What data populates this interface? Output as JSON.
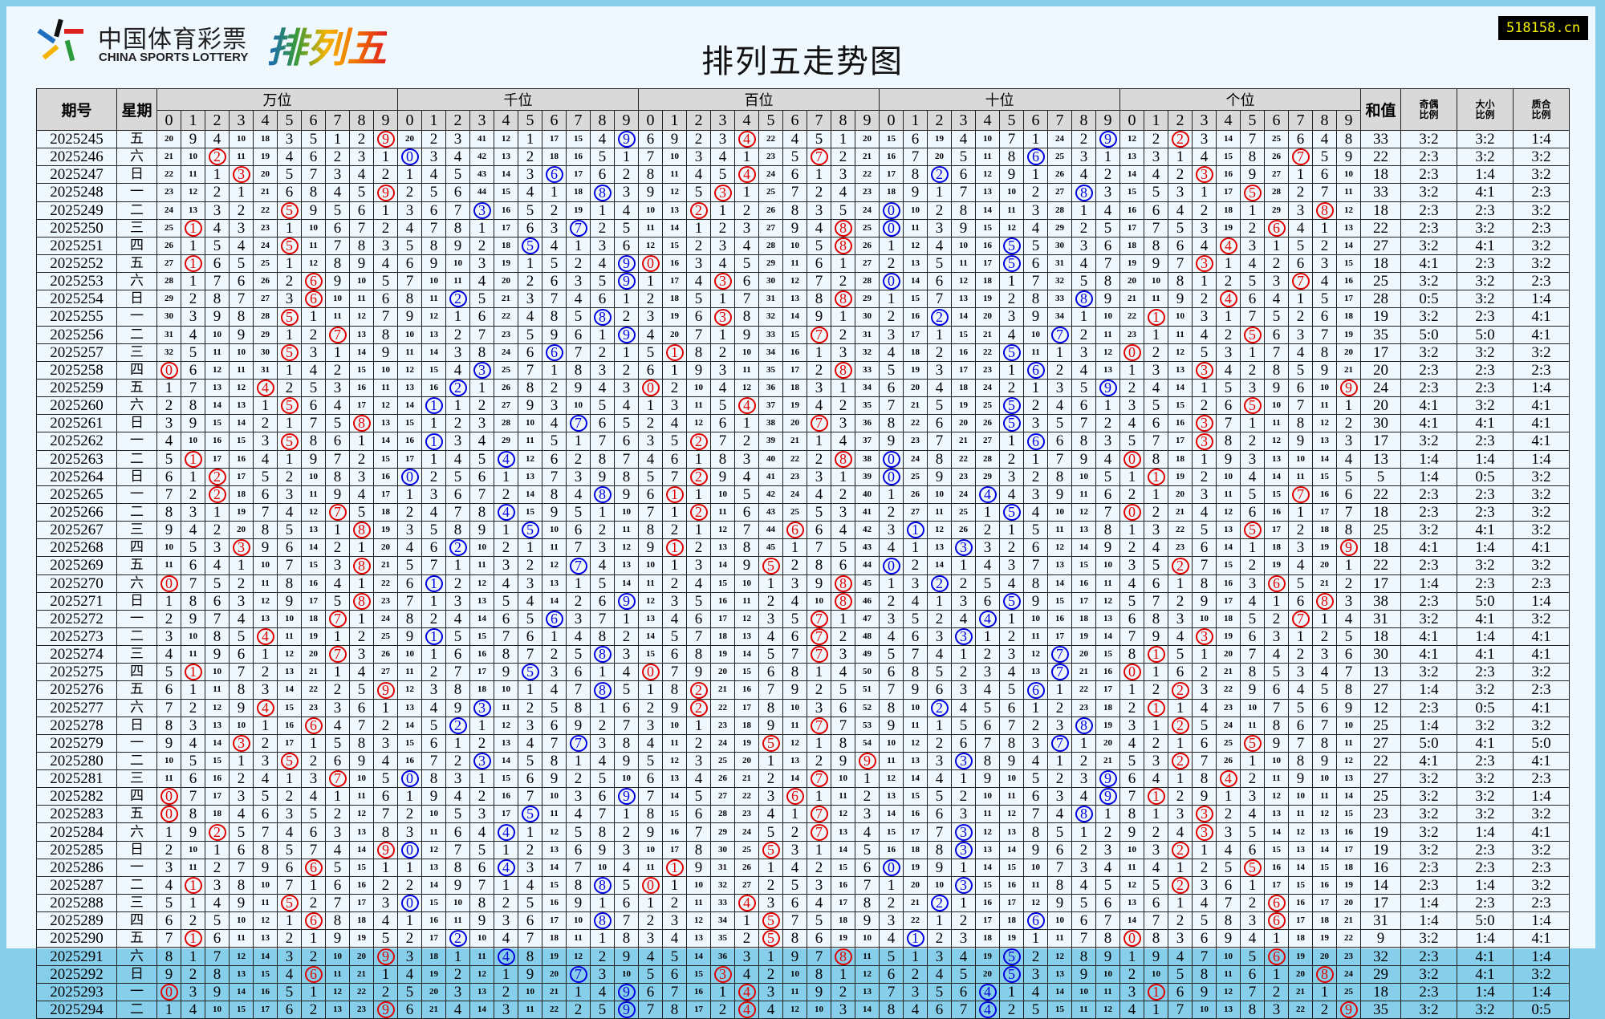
{
  "header": {
    "logo_cn": "中国体育彩票",
    "logo_en": "CHINA SPORTS LOTTERY",
    "logo_game": "排列五",
    "title": "排列五走势图",
    "watermark": "518158.cn"
  },
  "columns": {
    "period": "期号",
    "weekday": "星期",
    "positions": [
      "万位",
      "千位",
      "百位",
      "十位",
      "个位"
    ],
    "digit_labels": [
      "0",
      "1",
      "2",
      "3",
      "4",
      "5",
      "6",
      "7",
      "8",
      "9"
    ],
    "sum": "和值",
    "odd_even": [
      "奇偶",
      "比例"
    ],
    "big_small": [
      "大小",
      "比例"
    ],
    "prime_composite": [
      "质合",
      "比例"
    ]
  },
  "colors": {
    "position_circle": [
      "#e00000",
      "#0000e0",
      "#e00000",
      "#0000e0",
      "#e00000"
    ],
    "header_bg": "#d9d9d9",
    "page_bg": "#f0f8ff",
    "border": "#87ceeb"
  },
  "first_row_omissions": [
    [
      20,
      9,
      4,
      10,
      18,
      3,
      5,
      1,
      2,
      0
    ],
    [
      20,
      2,
      3,
      41,
      12,
      1,
      17,
      15,
      4,
      0
    ],
    [
      6,
      9,
      2,
      3,
      0,
      22,
      4,
      5,
      1,
      20
    ],
    [
      15,
      6,
      19,
      4,
      10,
      7,
      1,
      24,
      2,
      0
    ],
    [
      12,
      2,
      0,
      3,
      14,
      7,
      25,
      6,
      4,
      8
    ]
  ],
  "rows": [
    {
      "period": "2025245",
      "weekday": "五",
      "digits": [
        9,
        9,
        4,
        9,
        2
      ],
      "sum": 33,
      "odd_even": "3:2",
      "big_small": "3:2",
      "prime_composite": "1:4"
    },
    {
      "period": "2025246",
      "weekday": "六",
      "digits": [
        2,
        0,
        7,
        6,
        7
      ],
      "sum": 22,
      "odd_even": "2:3",
      "big_small": "3:2",
      "prime_composite": "3:2"
    },
    {
      "period": "2025247",
      "weekday": "日",
      "digits": [
        3,
        6,
        4,
        2,
        3
      ],
      "sum": 18,
      "odd_even": "2:3",
      "big_small": "1:4",
      "prime_composite": "3:2"
    },
    {
      "period": "2025248",
      "weekday": "一",
      "digits": [
        9,
        8,
        3,
        8,
        5
      ],
      "sum": 33,
      "odd_even": "3:2",
      "big_small": "4:1",
      "prime_composite": "2:3"
    },
    {
      "period": "2025249",
      "weekday": "二",
      "digits": [
        5,
        3,
        2,
        0,
        8
      ],
      "sum": 18,
      "odd_even": "2:3",
      "big_small": "2:3",
      "prime_composite": "3:2"
    },
    {
      "period": "2025250",
      "weekday": "三",
      "digits": [
        1,
        7,
        8,
        0,
        6
      ],
      "sum": 22,
      "odd_even": "2:3",
      "big_small": "3:2",
      "prime_composite": "2:3"
    },
    {
      "period": "2025251",
      "weekday": "四",
      "digits": [
        5,
        5,
        8,
        5,
        4
      ],
      "sum": 27,
      "odd_even": "3:2",
      "big_small": "4:1",
      "prime_composite": "3:2"
    },
    {
      "period": "2025252",
      "weekday": "五",
      "digits": [
        1,
        9,
        0,
        5,
        3
      ],
      "sum": 18,
      "odd_even": "4:1",
      "big_small": "2:3",
      "prime_composite": "3:2"
    },
    {
      "period": "2025253",
      "weekday": "六",
      "digits": [
        6,
        9,
        3,
        0,
        7
      ],
      "sum": 25,
      "odd_even": "3:2",
      "big_small": "3:2",
      "prime_composite": "2:3"
    },
    {
      "period": "2025254",
      "weekday": "日",
      "digits": [
        6,
        2,
        8,
        8,
        4
      ],
      "sum": 28,
      "odd_even": "0:5",
      "big_small": "3:2",
      "prime_composite": "1:4"
    },
    {
      "period": "2025255",
      "weekday": "一",
      "digits": [
        5,
        8,
        3,
        2,
        1
      ],
      "sum": 19,
      "odd_even": "3:2",
      "big_small": "2:3",
      "prime_composite": "4:1"
    },
    {
      "period": "2025256",
      "weekday": "二",
      "digits": [
        7,
        9,
        7,
        7,
        5
      ],
      "sum": 35,
      "odd_even": "5:0",
      "big_small": "5:0",
      "prime_composite": "4:1"
    },
    {
      "period": "2025257",
      "weekday": "三",
      "digits": [
        5,
        6,
        1,
        5,
        0
      ],
      "sum": 17,
      "odd_even": "3:2",
      "big_small": "3:2",
      "prime_composite": "3:2"
    },
    {
      "period": "2025258",
      "weekday": "四",
      "digits": [
        0,
        3,
        8,
        6,
        3
      ],
      "sum": 20,
      "odd_even": "2:3",
      "big_small": "2:3",
      "prime_composite": "2:3"
    },
    {
      "period": "2025259",
      "weekday": "五",
      "digits": [
        4,
        2,
        0,
        9,
        9
      ],
      "sum": 24,
      "odd_even": "2:3",
      "big_small": "2:3",
      "prime_composite": "1:4"
    },
    {
      "period": "2025260",
      "weekday": "六",
      "digits": [
        5,
        1,
        4,
        5,
        5
      ],
      "sum": 20,
      "odd_even": "4:1",
      "big_small": "3:2",
      "prime_composite": "4:1"
    },
    {
      "period": "2025261",
      "weekday": "日",
      "digits": [
        8,
        7,
        7,
        5,
        3
      ],
      "sum": 30,
      "odd_even": "4:1",
      "big_small": "4:1",
      "prime_composite": "4:1"
    },
    {
      "period": "2025262",
      "weekday": "一",
      "digits": [
        5,
        1,
        2,
        6,
        3
      ],
      "sum": 17,
      "odd_even": "3:2",
      "big_small": "2:3",
      "prime_composite": "4:1"
    },
    {
      "period": "2025263",
      "weekday": "二",
      "digits": [
        1,
        4,
        8,
        0,
        0
      ],
      "sum": 13,
      "odd_even": "1:4",
      "big_small": "1:4",
      "prime_composite": "1:4"
    },
    {
      "period": "2025264",
      "weekday": "日",
      "digits": [
        2,
        0,
        2,
        0,
        1
      ],
      "sum": 5,
      "odd_even": "1:4",
      "big_small": "0:5",
      "prime_composite": "3:2"
    },
    {
      "period": "2025265",
      "weekday": "一",
      "digits": [
        2,
        8,
        1,
        4,
        7
      ],
      "sum": 22,
      "odd_even": "2:3",
      "big_small": "2:3",
      "prime_composite": "3:2"
    },
    {
      "period": "2025266",
      "weekday": "二",
      "digits": [
        7,
        4,
        2,
        5,
        0
      ],
      "sum": 18,
      "odd_even": "2:3",
      "big_small": "2:3",
      "prime_composite": "3:2"
    },
    {
      "period": "2025267",
      "weekday": "三",
      "digits": [
        8,
        5,
        6,
        1,
        5
      ],
      "sum": 25,
      "odd_even": "3:2",
      "big_small": "4:1",
      "prime_composite": "3:2"
    },
    {
      "period": "2025268",
      "weekday": "四",
      "digits": [
        3,
        2,
        1,
        3,
        9
      ],
      "sum": 18,
      "odd_even": "4:1",
      "big_small": "1:4",
      "prime_composite": "4:1"
    },
    {
      "period": "2025269",
      "weekday": "五",
      "digits": [
        8,
        7,
        5,
        0,
        2
      ],
      "sum": 22,
      "odd_even": "2:3",
      "big_small": "3:2",
      "prime_composite": "3:2"
    },
    {
      "period": "2025270",
      "weekday": "六",
      "digits": [
        0,
        1,
        8,
        2,
        6
      ],
      "sum": 17,
      "odd_even": "1:4",
      "big_small": "2:3",
      "prime_composite": "2:3"
    },
    {
      "period": "2025271",
      "weekday": "日",
      "digits": [
        8,
        9,
        8,
        5,
        8
      ],
      "sum": 38,
      "odd_even": "2:3",
      "big_small": "5:0",
      "prime_composite": "1:4"
    },
    {
      "period": "2025272",
      "weekday": "一",
      "digits": [
        7,
        6,
        7,
        4,
        7
      ],
      "sum": 31,
      "odd_even": "3:2",
      "big_small": "4:1",
      "prime_composite": "3:2"
    },
    {
      "period": "2025273",
      "weekday": "二",
      "digits": [
        4,
        1,
        7,
        3,
        3
      ],
      "sum": 18,
      "odd_even": "4:1",
      "big_small": "1:4",
      "prime_composite": "4:1"
    },
    {
      "period": "2025274",
      "weekday": "三",
      "digits": [
        7,
        8,
        7,
        7,
        1
      ],
      "sum": 30,
      "odd_even": "4:1",
      "big_small": "4:1",
      "prime_composite": "4:1"
    },
    {
      "period": "2025275",
      "weekday": "四",
      "digits": [
        1,
        5,
        0,
        7,
        0
      ],
      "sum": 13,
      "odd_even": "3:2",
      "big_small": "2:3",
      "prime_composite": "3:2"
    },
    {
      "period": "2025276",
      "weekday": "五",
      "digits": [
        9,
        8,
        2,
        6,
        2
      ],
      "sum": 27,
      "odd_even": "1:4",
      "big_small": "3:2",
      "prime_composite": "2:3"
    },
    {
      "period": "2025277",
      "weekday": "六",
      "digits": [
        4,
        3,
        2,
        2,
        1
      ],
      "sum": 12,
      "odd_even": "2:3",
      "big_small": "0:5",
      "prime_composite": "4:1"
    },
    {
      "period": "2025278",
      "weekday": "日",
      "digits": [
        6,
        2,
        7,
        8,
        2
      ],
      "sum": 25,
      "odd_even": "1:4",
      "big_small": "3:2",
      "prime_composite": "3:2"
    },
    {
      "period": "2025279",
      "weekday": "一",
      "digits": [
        3,
        7,
        5,
        7,
        5
      ],
      "sum": 27,
      "odd_even": "5:0",
      "big_small": "4:1",
      "prime_composite": "5:0"
    },
    {
      "period": "2025280",
      "weekday": "二",
      "digits": [
        5,
        3,
        9,
        3,
        2
      ],
      "sum": 22,
      "odd_even": "4:1",
      "big_small": "2:3",
      "prime_composite": "4:1"
    },
    {
      "period": "2025281",
      "weekday": "三",
      "digits": [
        7,
        0,
        7,
        9,
        4
      ],
      "sum": 27,
      "odd_even": "3:2",
      "big_small": "3:2",
      "prime_composite": "2:3"
    },
    {
      "period": "2025282",
      "weekday": "四",
      "digits": [
        0,
        9,
        6,
        9,
        1
      ],
      "sum": 25,
      "odd_even": "3:2",
      "big_small": "3:2",
      "prime_composite": "1:4"
    },
    {
      "period": "2025283",
      "weekday": "五",
      "digits": [
        0,
        5,
        7,
        8,
        3
      ],
      "sum": 23,
      "odd_even": "3:2",
      "big_small": "3:2",
      "prime_composite": "3:2"
    },
    {
      "period": "2025284",
      "weekday": "六",
      "digits": [
        2,
        4,
        7,
        3,
        3
      ],
      "sum": 19,
      "odd_even": "3:2",
      "big_small": "1:4",
      "prime_composite": "4:1"
    },
    {
      "period": "2025285",
      "weekday": "日",
      "digits": [
        9,
        0,
        5,
        3,
        2
      ],
      "sum": 19,
      "odd_even": "3:2",
      "big_small": "2:3",
      "prime_composite": "3:2"
    },
    {
      "period": "2025286",
      "weekday": "一",
      "digits": [
        6,
        4,
        1,
        0,
        5
      ],
      "sum": 16,
      "odd_even": "2:3",
      "big_small": "2:3",
      "prime_composite": "2:3"
    },
    {
      "period": "2025287",
      "weekday": "二",
      "digits": [
        1,
        8,
        0,
        3,
        2
      ],
      "sum": 14,
      "odd_even": "2:3",
      "big_small": "1:4",
      "prime_composite": "3:2"
    },
    {
      "period": "2025288",
      "weekday": "三",
      "digits": [
        5,
        0,
        4,
        2,
        6
      ],
      "sum": 17,
      "odd_even": "1:4",
      "big_small": "2:3",
      "prime_composite": "2:3"
    },
    {
      "period": "2025289",
      "weekday": "四",
      "digits": [
        6,
        8,
        5,
        6,
        6
      ],
      "sum": 31,
      "odd_even": "1:4",
      "big_small": "5:0",
      "prime_composite": "1:4"
    },
    {
      "period": "2025290",
      "weekday": "五",
      "digits": [
        1,
        2,
        5,
        1,
        0
      ],
      "sum": 9,
      "odd_even": "3:2",
      "big_small": "1:4",
      "prime_composite": "4:1"
    },
    {
      "period": "2025291",
      "weekday": "六",
      "digits": [
        9,
        4,
        8,
        5,
        6
      ],
      "sum": 32,
      "odd_even": "2:3",
      "big_small": "4:1",
      "prime_composite": "1:4"
    },
    {
      "period": "2025292",
      "weekday": "日",
      "digits": [
        6,
        7,
        3,
        5,
        8
      ],
      "sum": 29,
      "odd_even": "3:2",
      "big_small": "4:1",
      "prime_composite": "3:2"
    },
    {
      "period": "2025293",
      "weekday": "一",
      "digits": [
        0,
        9,
        4,
        4,
        1
      ],
      "sum": 18,
      "odd_even": "2:3",
      "big_small": "1:4",
      "prime_composite": "1:4"
    },
    {
      "period": "2025294",
      "weekday": "二",
      "digits": [
        9,
        9,
        4,
        4,
        9
      ],
      "sum": 35,
      "odd_even": "3:2",
      "big_small": "3:2",
      "prime_composite": "0:5"
    }
  ]
}
